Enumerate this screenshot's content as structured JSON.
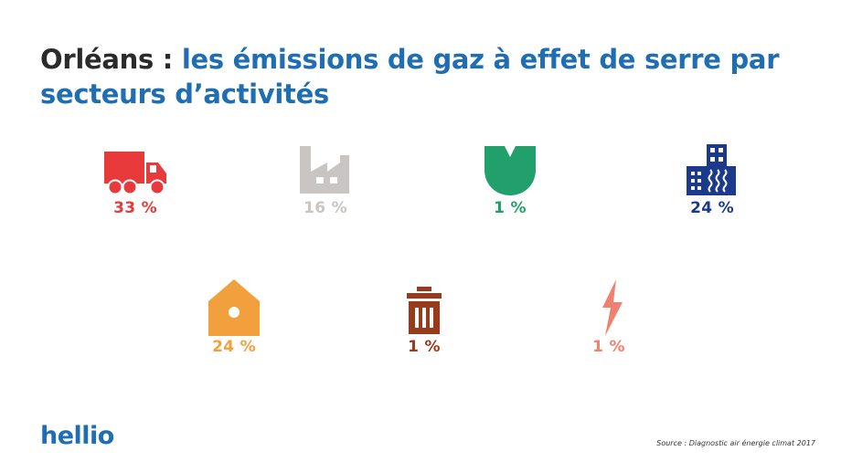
{
  "title": {
    "city": "Orléans :",
    "rest": "les émissions de gaz à effet de serre par secteurs d’activités"
  },
  "chart_data": {
    "type": "pictogram",
    "title": "Orléans : les émissions de gaz à effet de serre par secteurs d’activités",
    "unit": "%",
    "items": [
      {
        "icon": "truck-icon",
        "value": 33,
        "label": "33 %",
        "color": "#e83a3a"
      },
      {
        "icon": "factory-icon",
        "value": 16,
        "label": "16 %",
        "color": "#c9c5c2"
      },
      {
        "icon": "leaf-icon",
        "value": 1,
        "label": "1 %",
        "color": "#22a06b"
      },
      {
        "icon": "building-icon",
        "value": 24,
        "label": "24 %",
        "color": "#1b3a8c"
      },
      {
        "icon": "house-icon",
        "value": 24,
        "label": "24 %",
        "color": "#f2a03d"
      },
      {
        "icon": "trash-icon",
        "value": 1,
        "label": "1 %",
        "color": "#9a3a1c"
      },
      {
        "icon": "lightning-icon",
        "value": 1,
        "label": "1 %",
        "color": "#f08070"
      }
    ]
  },
  "brand": "hellio",
  "source": "Source : Diagnostic air énergie climat 2017"
}
